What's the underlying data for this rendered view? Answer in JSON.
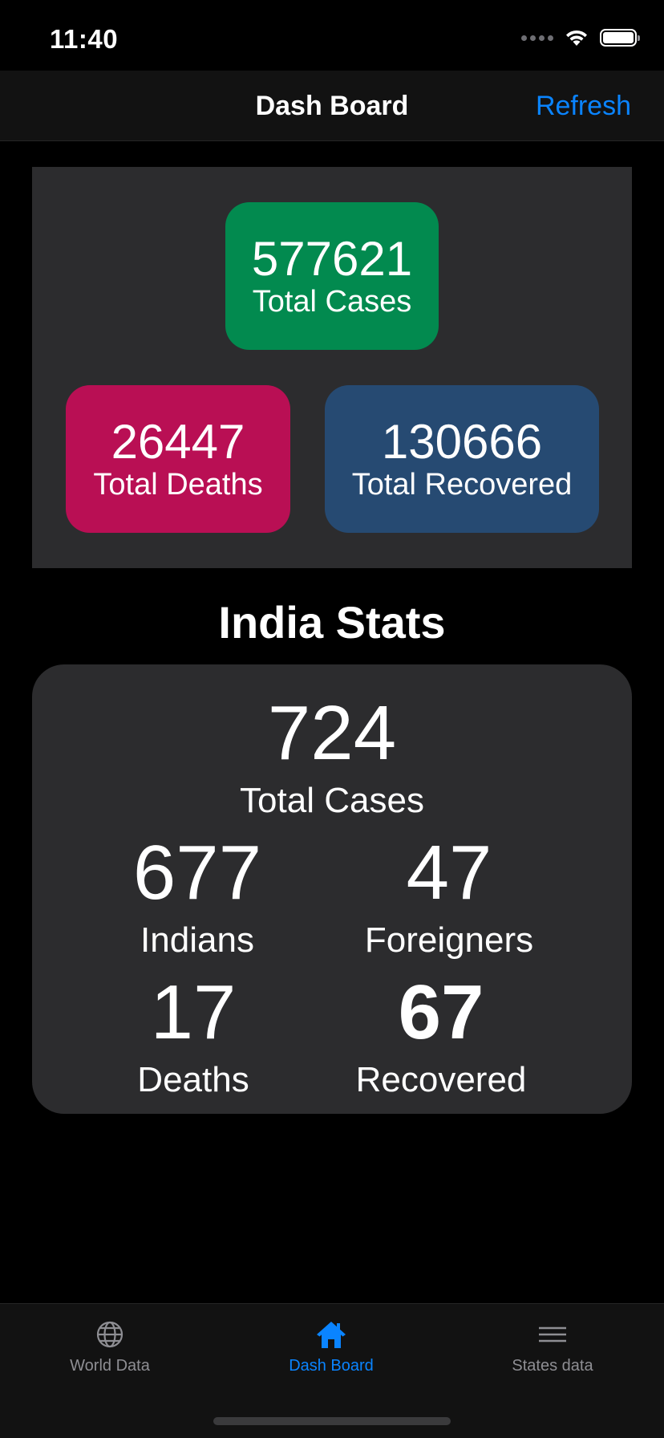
{
  "status_bar": {
    "time": "11:40"
  },
  "nav": {
    "title": "Dash Board",
    "refresh_label": "Refresh"
  },
  "world": {
    "total_cases": {
      "value": "577621",
      "label": "Total Cases",
      "color": "#028a4f"
    },
    "total_deaths": {
      "value": "26447",
      "label": "Total Deaths",
      "color": "#b90f54"
    },
    "total_recovered": {
      "value": "130666",
      "label": "Total Recovered",
      "color": "#264a72"
    }
  },
  "india": {
    "title": "India Stats",
    "total_cases": {
      "value": "724",
      "label": "Total Cases"
    },
    "indians": {
      "value": "677",
      "label": "Indians"
    },
    "foreigners": {
      "value": "47",
      "label": "Foreigners"
    },
    "deaths": {
      "value": "17",
      "label": "Deaths"
    },
    "recovered": {
      "value": "67",
      "label": "Recovered"
    }
  },
  "tabs": [
    {
      "label": "World Data",
      "icon": "globe-icon",
      "active": false
    },
    {
      "label": "Dash Board",
      "icon": "house-icon",
      "active": true
    },
    {
      "label": "States data",
      "icon": "list-lines-icon",
      "active": false
    }
  ],
  "colors": {
    "accent": "#0a84ff",
    "panel": "#2c2c2e",
    "background": "#000000",
    "inactive_tab": "#8e8e93"
  }
}
